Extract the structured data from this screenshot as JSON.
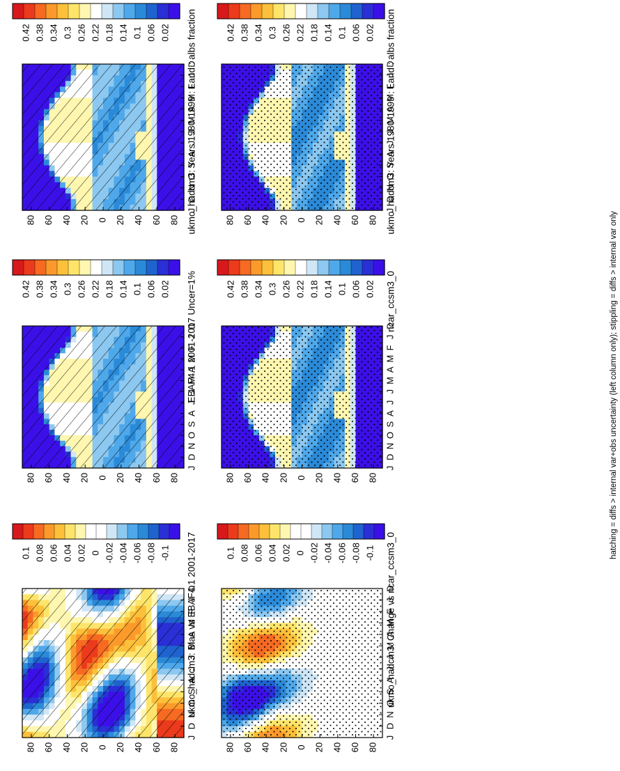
{
  "footnote": "hatching = diffs > internal var+obs uncertainty (left column only); stippling = diffs > internal var only",
  "chart_data": [
    {
      "id": "p1",
      "type": "heatmap",
      "title": "ukmo_hadcm3: Years 1980-1999 : Land : albs fraction",
      "xticks": [
        "D",
        "J",
        "F",
        "M",
        "A",
        "M",
        "J",
        "J",
        "A",
        "S",
        "O",
        "N",
        "D",
        "J"
      ],
      "yticks": [
        "80",
        "60",
        "40",
        "20",
        "0",
        "20",
        "40",
        "60",
        "80"
      ],
      "colorbar": [
        "0.42",
        "0.38",
        "0.34",
        "0.3",
        "0.26",
        "0.22",
        "0.18",
        "0.14",
        "0.1",
        "0.06",
        "0.02"
      ],
      "colors": [
        "#d7191c",
        "#ec3a1c",
        "#f66a22",
        "#fb9a2b",
        "#fdc03a",
        "#fee56a",
        "#fff7b0",
        "#ffffff",
        "#cfe6f6",
        "#8cc8f0",
        "#4fa8ea",
        "#2b8ad8",
        "#1f63cf",
        "#2a2fd6",
        "#3b10e8"
      ],
      "scheme": "abs",
      "overlay": "hatch"
    },
    {
      "id": "p2",
      "type": "heatmap",
      "title": "ukmo_hadcm3: Years 1980-1999 : Land : albs fraction",
      "xticks": [
        "D",
        "J",
        "F",
        "M",
        "A",
        "M",
        "J",
        "J",
        "A",
        "S",
        "O",
        "N",
        "D",
        "J"
      ],
      "yticks": [
        "80",
        "60",
        "40",
        "20",
        "0",
        "20",
        "40",
        "60",
        "80"
      ],
      "colorbar": [
        "0.42",
        "0.38",
        "0.34",
        "0.3",
        "0.26",
        "0.22",
        "0.18",
        "0.14",
        "0.1",
        "0.06",
        "0.02"
      ],
      "colors": [
        "#d7191c",
        "#ec3a1c",
        "#f66a22",
        "#fb9a2b",
        "#fdc03a",
        "#fee56a",
        "#fff7b0",
        "#ffffff",
        "#cfe6f6",
        "#8cc8f0",
        "#4fa8ea",
        "#2b8ad8",
        "#1f63cf",
        "#2a2fd6",
        "#3b10e8"
      ],
      "scheme": "abs",
      "overlay": "stipple"
    },
    {
      "id": "p3",
      "type": "heatmap",
      "title": "EBAF4.1 2001-2017 Uncer=1%",
      "xticks": [
        "D",
        "J",
        "F",
        "M",
        "A",
        "M",
        "J",
        "J",
        "A",
        "S",
        "O",
        "N",
        "D",
        "J"
      ],
      "yticks": [
        "80",
        "60",
        "40",
        "20",
        "0",
        "20",
        "40",
        "60",
        "80"
      ],
      "colorbar": [
        "0.42",
        "0.38",
        "0.34",
        "0.3",
        "0.26",
        "0.22",
        "0.18",
        "0.14",
        "0.1",
        "0.06",
        "0.02"
      ],
      "colors": [
        "#d7191c",
        "#ec3a1c",
        "#f66a22",
        "#fb9a2b",
        "#fdc03a",
        "#fee56a",
        "#fff7b0",
        "#ffffff",
        "#cfe6f6",
        "#8cc8f0",
        "#4fa8ea",
        "#2b8ad8",
        "#1f63cf",
        "#2a2fd6",
        "#3b10e8"
      ],
      "scheme": "abs",
      "overlay": "hatch"
    },
    {
      "id": "p4",
      "type": "heatmap",
      "title": "ncar_ccsm3_0",
      "xticks": [
        "D",
        "J",
        "F",
        "M",
        "A",
        "M",
        "J",
        "J",
        "A",
        "S",
        "O",
        "N",
        "D",
        "J"
      ],
      "yticks": [
        "80",
        "60",
        "40",
        "20",
        "0",
        "20",
        "40",
        "60",
        "80"
      ],
      "colorbar": [
        "0.42",
        "0.38",
        "0.34",
        "0.3",
        "0.26",
        "0.22",
        "0.18",
        "0.14",
        "0.1",
        "0.06",
        "0.02"
      ],
      "colors": [
        "#d7191c",
        "#ec3a1c",
        "#f66a22",
        "#fb9a2b",
        "#fdc03a",
        "#fee56a",
        "#fff7b0",
        "#ffffff",
        "#cfe6f6",
        "#8cc8f0",
        "#4fa8ea",
        "#2b8ad8",
        "#1f63cf",
        "#2a2fd6",
        "#3b10e8"
      ],
      "scheme": "abs",
      "overlay": "stipple"
    },
    {
      "id": "p5",
      "type": "heatmap",
      "title": "ukmo_hadcm3: Bias vs EBAF4.1 2001-2017",
      "xticks": [
        "D",
        "J",
        "F",
        "M",
        "A",
        "M",
        "J",
        "J",
        "A",
        "S",
        "O",
        "N",
        "D",
        "J"
      ],
      "yticks": [
        "80",
        "60",
        "40",
        "20",
        "0",
        "20",
        "40",
        "60",
        "80"
      ],
      "colorbar": [
        "0.1",
        "0.08",
        "0.06",
        "0.04",
        "0.02",
        "0",
        "-0.02",
        "-0.04",
        "-0.06",
        "-0.08",
        "-0.1"
      ],
      "colors": [
        "#d7191c",
        "#ec3a1c",
        "#f66a22",
        "#fb9a2b",
        "#fdc03a",
        "#fee56a",
        "#fff7b0",
        "#ffffff",
        "#ffffff",
        "#cfe6f6",
        "#8cc8f0",
        "#4fa8ea",
        "#2b8ad8",
        "#1f63cf",
        "#2a2fd6",
        "#3b10e8"
      ],
      "scheme": "bias",
      "overlay": "hatch"
    },
    {
      "id": "p6",
      "type": "heatmap",
      "title": "ukmo_hadcm3: Change vs ncar_ccsm3_0",
      "xticks": [
        "D",
        "J",
        "F",
        "M",
        "A",
        "M",
        "J",
        "J",
        "A",
        "S",
        "O",
        "N",
        "D",
        "J"
      ],
      "yticks": [
        "80",
        "60",
        "40",
        "20",
        "0",
        "20",
        "40",
        "60",
        "80"
      ],
      "colorbar": [
        "0.1",
        "0.08",
        "0.06",
        "0.04",
        "0.02",
        "0",
        "-0.02",
        "-0.04",
        "-0.06",
        "-0.08",
        "-0.1"
      ],
      "colors": [
        "#d7191c",
        "#ec3a1c",
        "#f66a22",
        "#fb9a2b",
        "#fdc03a",
        "#fee56a",
        "#fff7b0",
        "#ffffff",
        "#ffffff",
        "#cfe6f6",
        "#8cc8f0",
        "#4fa8ea",
        "#2b8ad8",
        "#1f63cf",
        "#2a2fd6",
        "#3b10e8"
      ],
      "scheme": "change",
      "overlay": "stipple"
    }
  ]
}
